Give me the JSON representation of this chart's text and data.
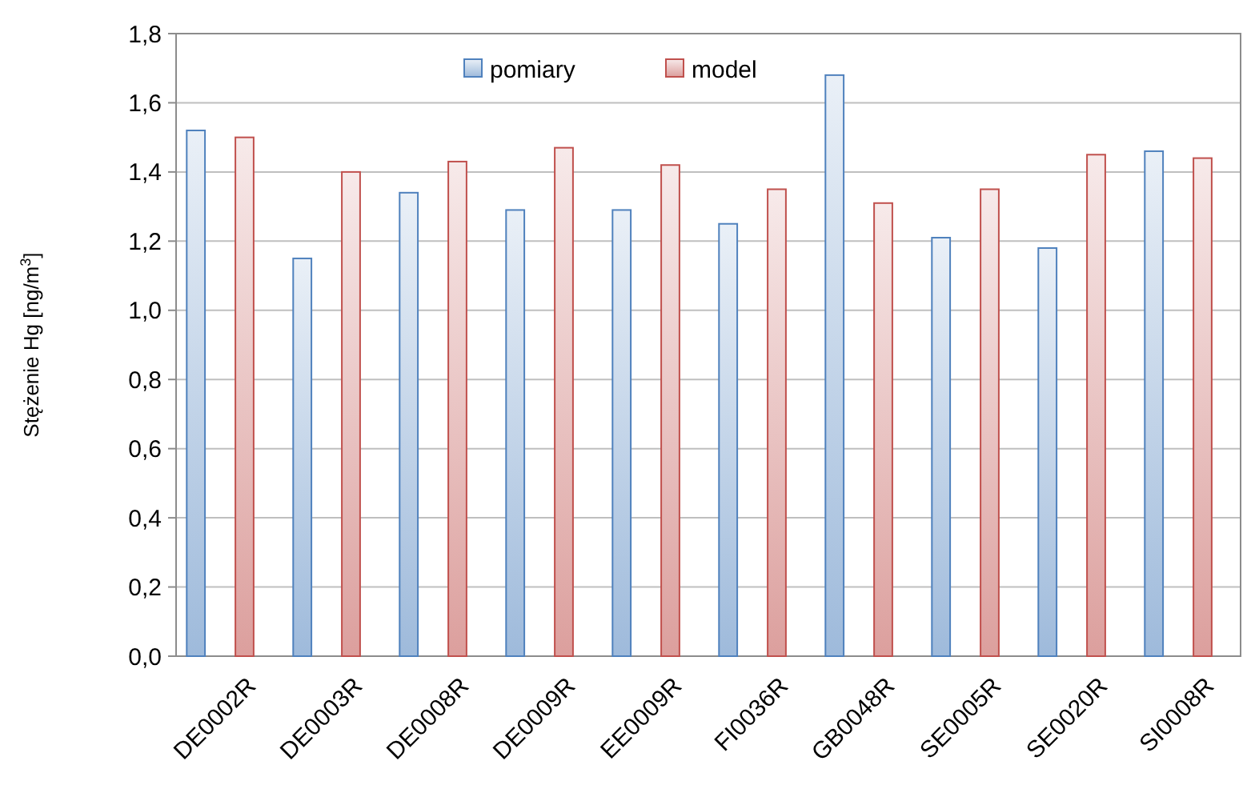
{
  "chart_data": {
    "type": "bar",
    "ylabel": "Stężenie Hg [ng/m$^{3}$]",
    "categories": [
      "DE0002R",
      "DE0003R",
      "DE0008R",
      "DE0009R",
      "EE0009R",
      "FI0036R",
      "GB0048R",
      "SE0005R",
      "SE0020R",
      "SI0008R"
    ],
    "series": [
      {
        "name": "pomiary",
        "color": "#4f81bd",
        "values": [
          1.52,
          1.15,
          1.34,
          1.29,
          1.29,
          1.25,
          1.68,
          1.21,
          1.18,
          1.46
        ]
      },
      {
        "name": "model",
        "color": "#c0504d",
        "values": [
          1.5,
          1.4,
          1.43,
          1.47,
          1.42,
          1.35,
          1.31,
          1.35,
          1.45,
          1.44
        ]
      }
    ],
    "ylim": [
      0,
      1.8
    ],
    "yticks": [
      {
        "value": 0,
        "label": "0,0"
      },
      {
        "value": 0.2,
        "label": "0,2"
      },
      {
        "value": 0.4,
        "label": "0,4"
      },
      {
        "value": 0.6,
        "label": "0,6"
      },
      {
        "value": 0.8,
        "label": "0,8"
      },
      {
        "value": 1,
        "label": "1,0"
      },
      {
        "value": 1.2,
        "label": "1,2"
      },
      {
        "value": 1.4,
        "label": "1,4"
      },
      {
        "value": 1.6,
        "label": "1,6"
      },
      {
        "value": 1.8,
        "label": "1,8"
      }
    ],
    "grid": true,
    "legend": "top"
  }
}
